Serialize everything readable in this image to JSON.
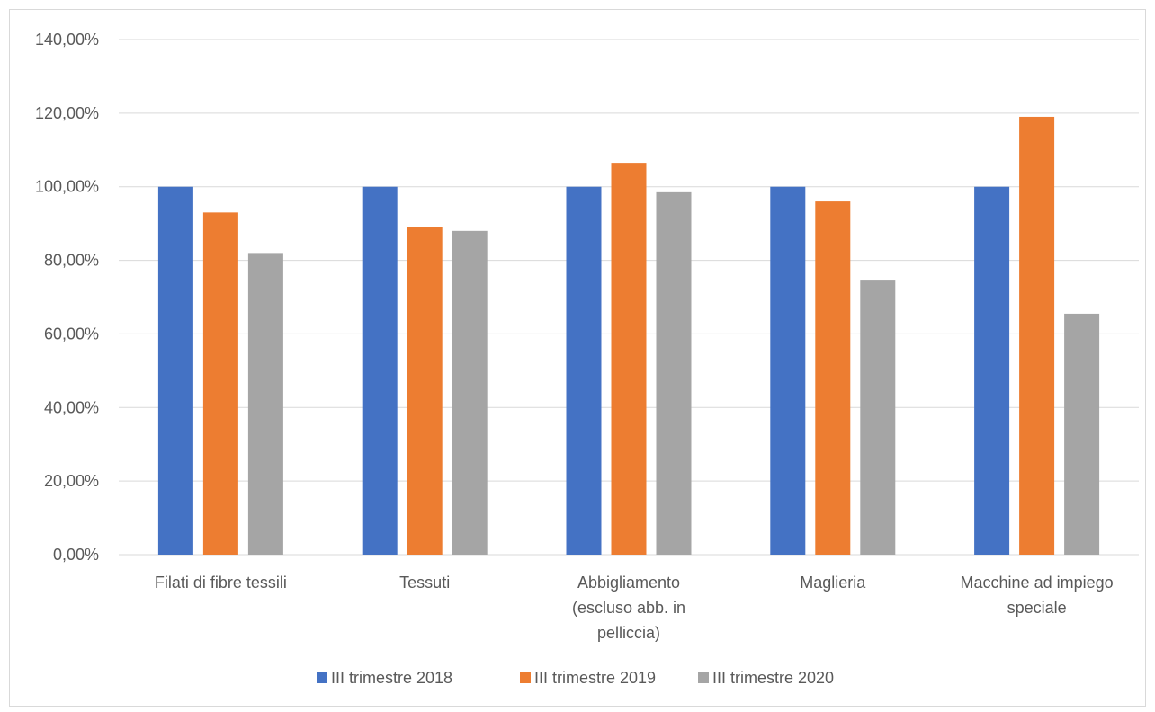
{
  "chart_data": {
    "type": "bar",
    "title": "",
    "xlabel": "",
    "ylabel": "",
    "ylim": [
      0,
      1.4
    ],
    "y_ticks": [
      {
        "value": 0.0,
        "label": "0,00%"
      },
      {
        "value": 0.2,
        "label": "20,00%"
      },
      {
        "value": 0.4,
        "label": "40,00%"
      },
      {
        "value": 0.6,
        "label": "60,00%"
      },
      {
        "value": 0.8,
        "label": "80,00%"
      },
      {
        "value": 1.0,
        "label": "100,00%"
      },
      {
        "value": 1.2,
        "label": "120,00%"
      },
      {
        "value": 1.4,
        "label": "140,00%"
      }
    ],
    "categories": [
      [
        "Filati di fibre tessili"
      ],
      [
        "Tessuti"
      ],
      [
        "Abbigliamento",
        "(escluso abb. in",
        "pelliccia)"
      ],
      [
        "Maglieria"
      ],
      [
        "Macchine ad impiego",
        "speciale"
      ]
    ],
    "series": [
      {
        "name": "III trimestre 2018",
        "color": "#4472C4",
        "values": [
          1.0,
          1.0,
          1.0,
          1.0,
          1.0
        ]
      },
      {
        "name": "III trimestre 2019",
        "color": "#ED7D31",
        "values": [
          0.93,
          0.89,
          1.065,
          0.96,
          1.19
        ]
      },
      {
        "name": "III trimestre 2020",
        "color": "#A5A5A5",
        "values": [
          0.82,
          0.88,
          0.985,
          0.745,
          0.655
        ]
      }
    ],
    "grid": true,
    "legend_position": "bottom"
  }
}
